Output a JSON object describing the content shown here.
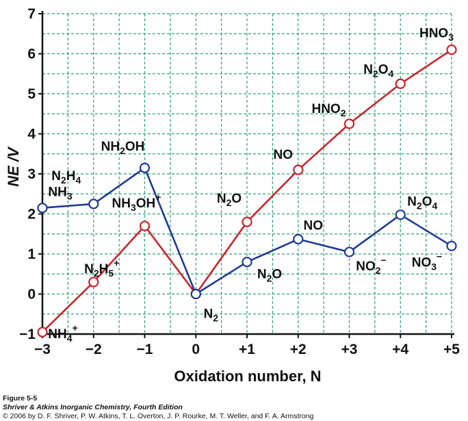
{
  "chart_data": {
    "type": "line",
    "xlabel": "Oxidation number, N",
    "ylabel": "NE /V",
    "xlim": [
      -3,
      5
    ],
    "ylim": [
      -1,
      7
    ],
    "x_ticks": [
      "−3",
      "−2",
      "−1",
      "0",
      "+1",
      "+2",
      "+3",
      "+4",
      "+5"
    ],
    "y_ticks": [
      "−1",
      "0",
      "1",
      "2",
      "3",
      "4",
      "5",
      "6",
      "7"
    ],
    "grid": true,
    "colors": {
      "acid": "#c9242b",
      "base": "#1f3a93",
      "grid": "#2e9e6e"
    },
    "series": [
      {
        "key": "acid",
        "points": [
          {
            "x": -3,
            "y": -0.95,
            "label": "NH4+"
          },
          {
            "x": -2,
            "y": 0.3,
            "label": "N2H5+"
          },
          {
            "x": -1,
            "y": 1.7,
            "label": "NH3OH+"
          },
          {
            "x": 0,
            "y": 0,
            "label": "N2"
          },
          {
            "x": 1,
            "y": 1.8,
            "label": "N2O"
          },
          {
            "x": 2,
            "y": 3.1,
            "label": "NO"
          },
          {
            "x": 3,
            "y": 4.25,
            "label": "HNO2"
          },
          {
            "x": 4,
            "y": 5.25,
            "label": "N2O4"
          },
          {
            "x": 5,
            "y": 6.1,
            "label": "HNO3"
          }
        ]
      },
      {
        "key": "base",
        "points": [
          {
            "x": -3,
            "y": 2.15,
            "label": "NH3"
          },
          {
            "x": -2,
            "y": 2.25,
            "label": "N2H4"
          },
          {
            "x": -1,
            "y": 3.15,
            "label": "NH2OH"
          },
          {
            "x": 0,
            "y": 0,
            "label": ""
          },
          {
            "x": 1,
            "y": 0.8,
            "label": "N2O"
          },
          {
            "x": 2,
            "y": 1.37,
            "label": "NO"
          },
          {
            "x": 3,
            "y": 1.05,
            "label": "NO2−"
          },
          {
            "x": 4,
            "y": 1.98,
            "label": "N2O4"
          },
          {
            "x": 5,
            "y": 1.2,
            "label": "NO3−"
          }
        ]
      }
    ]
  },
  "caption": {
    "figure": "Figure 5-5",
    "book": "Shriver & Atkins Inorganic Chemistry, Fourth Edition",
    "copyright": "© 2006 by D. F. Shriver, P. W. Atkins, T. L. Overton, J. P. Rourke, M. T. Weller, and F. A. Armstrong"
  }
}
